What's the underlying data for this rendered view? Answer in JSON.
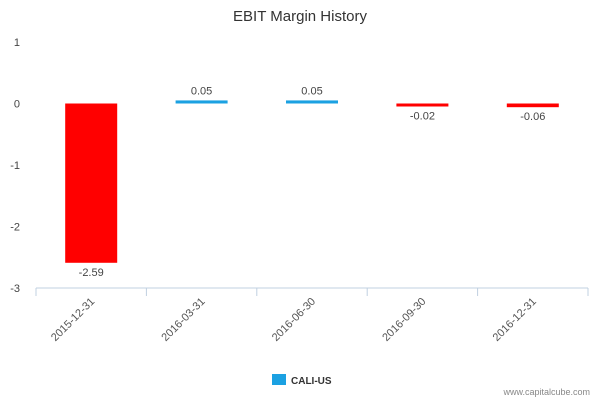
{
  "chart_data": {
    "type": "bar",
    "title": "EBIT Margin History",
    "categories": [
      "2015-12-31",
      "2016-03-31",
      "2016-06-30",
      "2016-09-30",
      "2016-12-31"
    ],
    "series": [
      {
        "name": "CALI-US",
        "values": [
          -2.59,
          0.05,
          0.05,
          -0.02,
          -0.06
        ],
        "color": "#1ba1e2"
      }
    ],
    "data_labels": [
      "-2.59",
      "0.05",
      "0.05",
      "-0.02",
      "-0.06"
    ],
    "negative_color": "#ff0000",
    "ylim": [
      -3,
      1
    ],
    "yticks": [
      1,
      0,
      -1,
      -2,
      -3
    ],
    "ytick_labels": [
      "1",
      "0",
      "-1",
      "-2",
      "-3"
    ],
    "grid": false,
    "legend_position": "bottom-center",
    "xlabel": "",
    "ylabel": ""
  },
  "footer": {
    "credit": "www.capitalcube.com"
  }
}
